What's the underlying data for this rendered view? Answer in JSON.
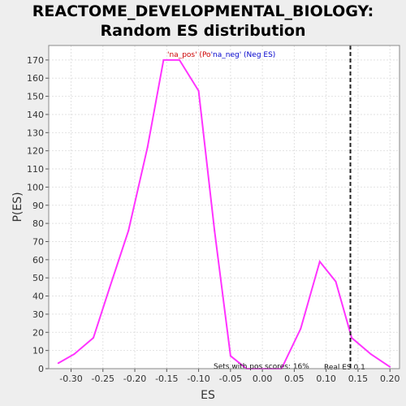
{
  "chart_data": {
    "type": "line",
    "title_line1": "REACTOME_DEVELOPMENTAL_BIOLOGY:",
    "title_line2": "Random ES distribution",
    "xlabel": "ES",
    "ylabel": "P(ES)",
    "xlim": [
      -0.335,
      0.215
    ],
    "ylim": [
      0,
      178
    ],
    "x_ticks": [
      -0.3,
      -0.25,
      -0.2,
      -0.15,
      -0.1,
      -0.05,
      0.0,
      0.05,
      0.1,
      0.15,
      0.2
    ],
    "x_tick_labels": [
      "-0.30",
      "-0.25",
      "-0.20",
      "-0.15",
      "-0.10",
      "-0.05",
      "0.00",
      "0.05",
      "0.10",
      "0.15",
      "0.20"
    ],
    "y_ticks": [
      0,
      10,
      20,
      30,
      40,
      50,
      60,
      70,
      80,
      90,
      100,
      110,
      120,
      130,
      140,
      150,
      160,
      170
    ],
    "grid": true,
    "series": [
      {
        "color": "#ff33ff",
        "x": [
          -0.32,
          -0.295,
          -0.265,
          -0.24,
          -0.21,
          -0.18,
          -0.155,
          -0.13,
          -0.1,
          -0.075,
          -0.05,
          -0.025,
          0.0,
          0.03,
          0.06,
          0.09,
          0.115,
          0.14,
          0.17,
          0.2
        ],
        "y": [
          3,
          8,
          17,
          44,
          76,
          122,
          170,
          170,
          153,
          76,
          7,
          0,
          0,
          0,
          22,
          59,
          48,
          17,
          8,
          1
        ]
      }
    ],
    "real_es": 0.138,
    "real_es_label": "Real ES 0.1",
    "legend_pos_text": "'na_pos' (Po",
    "legend_pos_color": "#cc0000",
    "legend_neg_text": "'na_neg' (Neg ES)",
    "legend_neg_color": "#0000cc",
    "sets_note": "Sets with pos scores: 16%"
  }
}
